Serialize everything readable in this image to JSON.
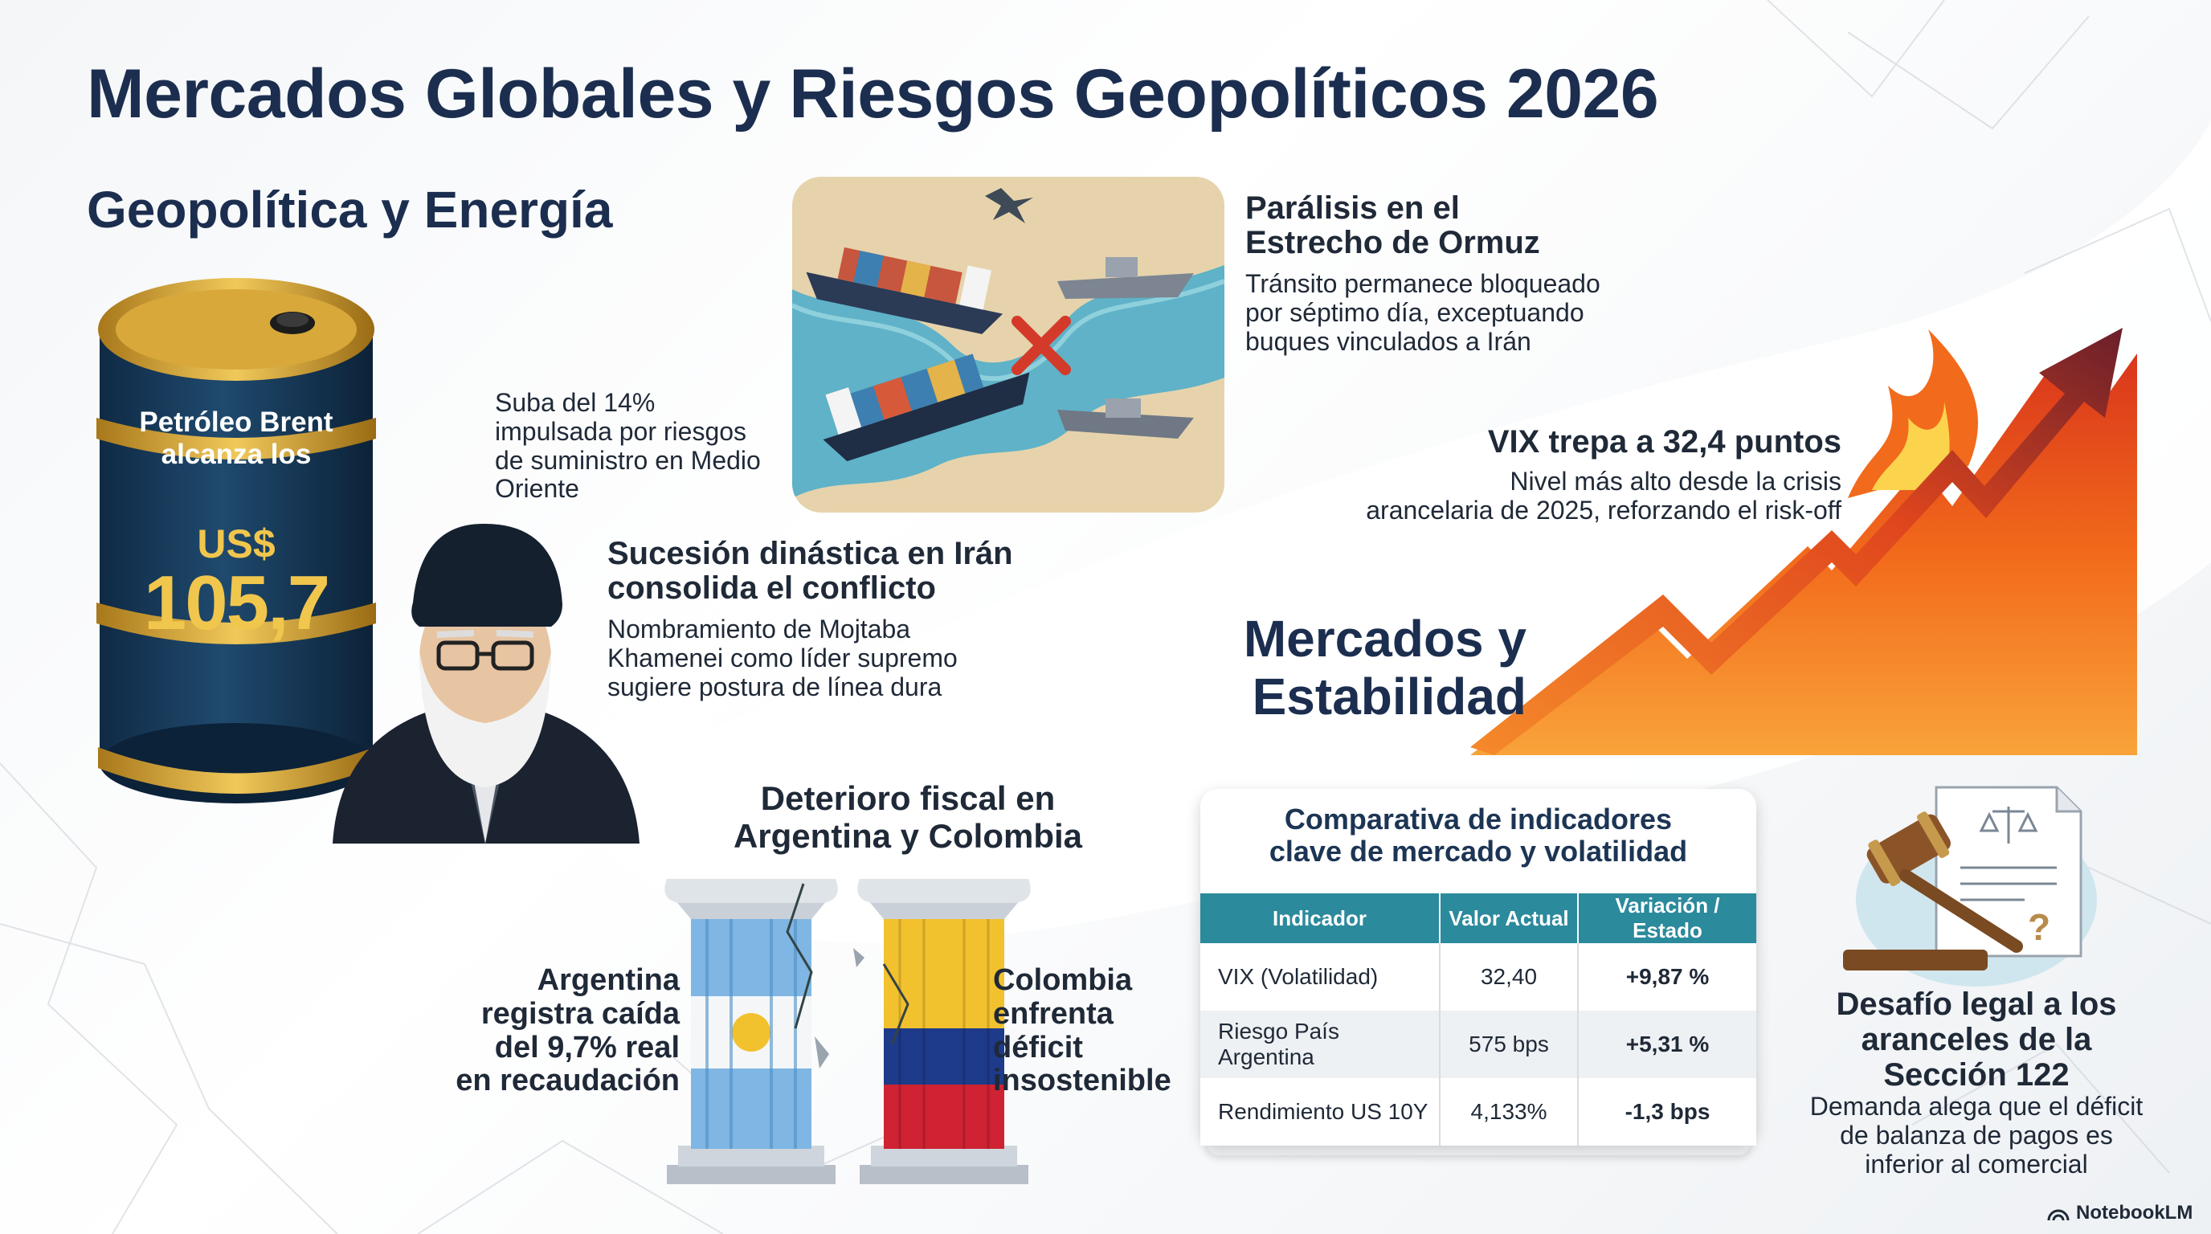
{
  "title": "Mercados Globales y Riesgos Geopolíticos 2026",
  "geo_section": {
    "heading": "Geopolítica y Energía",
    "barrel": {
      "label_line1": "Petróleo Brent",
      "label_line2": "alcanza los",
      "currency": "US$",
      "value": "105,7"
    },
    "oil_note": [
      "Suba del 14%",
      "impulsada por riesgos",
      "de suministro en Medio",
      "Oriente"
    ],
    "iran": {
      "title_line1": "Sucesión dinástica en Irán",
      "title_line2": "consolida el conflicto",
      "body": [
        "Nombramiento de Mojtaba",
        "Khamenei como líder supremo",
        "sugiere postura de línea dura"
      ]
    },
    "hormuz": {
      "title_line1": "Parálisis en el",
      "title_line2": "Estrecho de Ormuz",
      "body": [
        "Tránsito permanece bloqueado",
        "por séptimo día, exceptuando",
        "buques vinculados a Irán"
      ]
    }
  },
  "markets_section": {
    "heading_line1": "Mercados y",
    "heading_line2": "Estabilidad",
    "vix": {
      "title": "VIX trepa a 32,4 puntos",
      "body": [
        "Nivel más alto desde la crisis",
        "arancelaria de 2025, reforzando el risk-off"
      ]
    }
  },
  "fiscal": {
    "title_line1": "Deterioro fiscal en",
    "title_line2": "Argentina y Colombia",
    "argentina": [
      "Argentina",
      "registra caída",
      "del 9,7% real",
      "en recaudación"
    ],
    "colombia": [
      "Colombia",
      "enfrenta",
      "déficit",
      "insostenible"
    ]
  },
  "table": {
    "title_line1": "Comparativa de indicadores",
    "title_line2": "clave de mercado y volatilidad",
    "headers": [
      "Indicador",
      "Valor Actual",
      "Variación / Estado"
    ],
    "rows": [
      {
        "indicator": "VIX (Volatilidad)",
        "value": "32,40",
        "change": "+9,87 %"
      },
      {
        "indicator": "Riesgo País Argentina",
        "value": "575 bps",
        "change": "+5,31 %"
      },
      {
        "indicator": "Rendimiento US 10Y",
        "value": "4,133%",
        "change": "-1,3 bps"
      }
    ]
  },
  "legal": {
    "title": [
      "Desafío legal a los",
      "aranceles de la",
      "Sección 122"
    ],
    "body": [
      "Demanda alega que el déficit",
      "de balanza de pagos es",
      "inferior al comercial"
    ]
  },
  "footer": {
    "brand": "NotebookLM"
  },
  "colors": {
    "navy": "#1c2e4f",
    "teal": "#2b8a9c",
    "gold": "#e9b93a",
    "up_red": "#b3262d",
    "down_green": "#1f8a3e",
    "fire_orange": "#f26a1b"
  }
}
